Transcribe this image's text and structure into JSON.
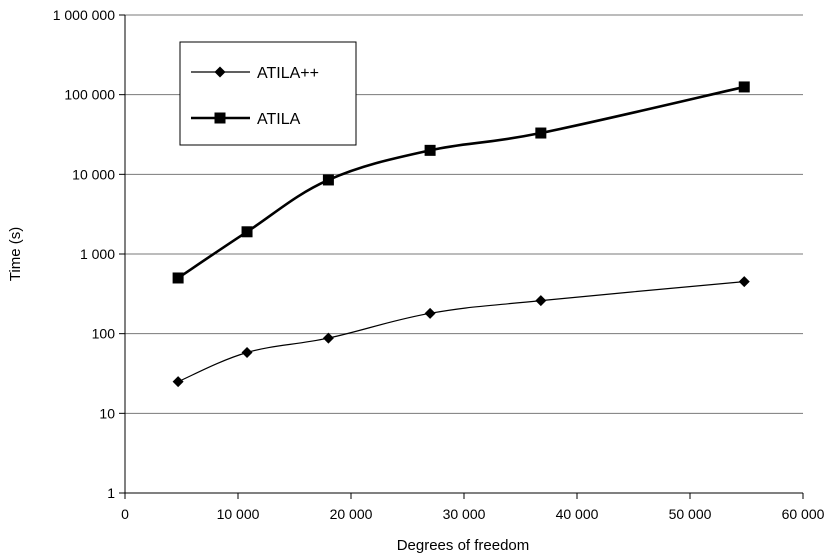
{
  "chart_data": {
    "type": "line",
    "xlabel": "Degrees of freedom",
    "ylabel": "Time (s)",
    "xlim": [
      0,
      60000
    ],
    "ylim": [
      1,
      1000000
    ],
    "yscale": "log",
    "grid": "horizontal",
    "legend_position": "top-left",
    "x_ticks": [
      {
        "value": 0,
        "label": "0"
      },
      {
        "value": 10000,
        "label": "10 000"
      },
      {
        "value": 20000,
        "label": "20 000"
      },
      {
        "value": 30000,
        "label": "30 000"
      },
      {
        "value": 40000,
        "label": "40 000"
      },
      {
        "value": 50000,
        "label": "50 000"
      },
      {
        "value": 60000,
        "label": "60 000"
      }
    ],
    "y_ticks": [
      {
        "value": 1,
        "label": "1"
      },
      {
        "value": 10,
        "label": "10"
      },
      {
        "value": 100,
        "label": "100"
      },
      {
        "value": 1000,
        "label": "1 000"
      },
      {
        "value": 10000,
        "label": "10 000"
      },
      {
        "value": 100000,
        "label": "100 000"
      },
      {
        "value": 1000000,
        "label": "1 000 000"
      }
    ],
    "series": [
      {
        "name": "ATILA++",
        "marker": "diamond",
        "line_width": "thin",
        "color": "#000000",
        "x": [
          4700,
          10800,
          18000,
          27000,
          36800,
          54800
        ],
        "y": [
          25,
          58,
          88,
          180,
          260,
          450
        ]
      },
      {
        "name": "ATILA",
        "marker": "square",
        "line_width": "thick",
        "color": "#000000",
        "x": [
          4700,
          10800,
          18000,
          27000,
          36800,
          54800
        ],
        "y": [
          500,
          1900,
          8500,
          20000,
          33000,
          125000
        ]
      }
    ]
  }
}
